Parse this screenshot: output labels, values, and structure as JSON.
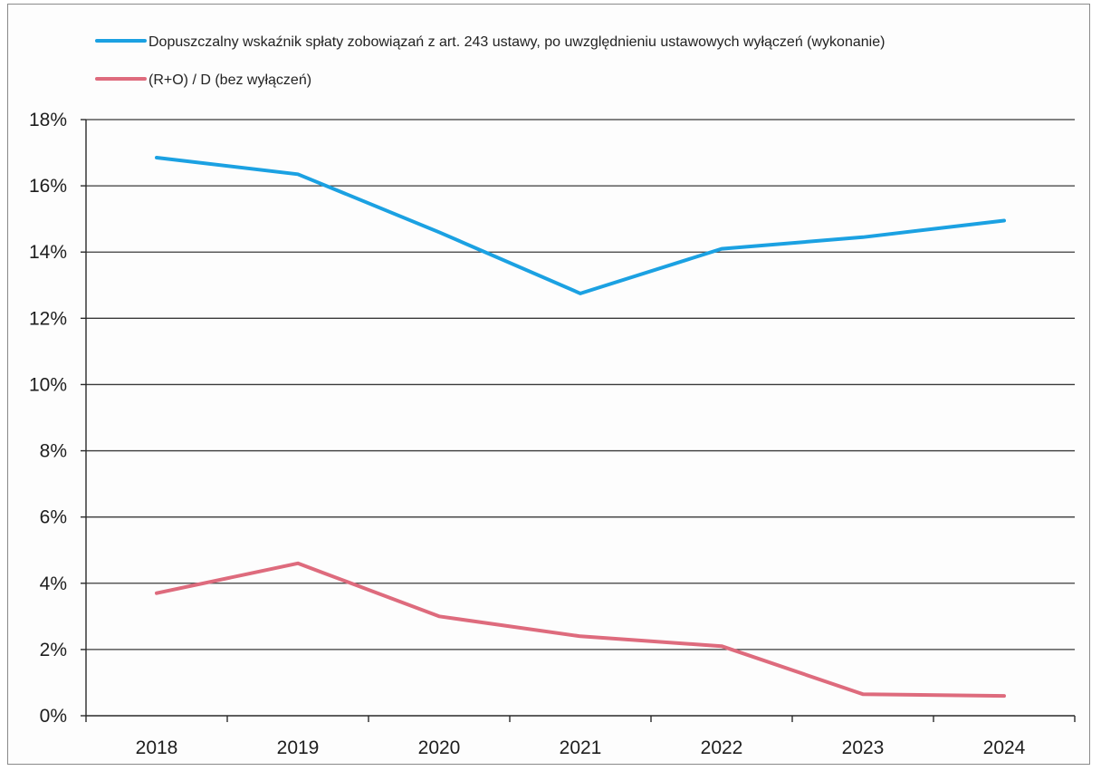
{
  "chart_data": {
    "type": "line",
    "title": "",
    "xlabel": "",
    "ylabel": "",
    "categories": [
      "2018",
      "2019",
      "2020",
      "2021",
      "2022",
      "2023",
      "2024"
    ],
    "ylim": [
      0,
      18
    ],
    "ytick_step": 2,
    "ytick_labels": [
      "0%",
      "2%",
      "4%",
      "6%",
      "8%",
      "10%",
      "12%",
      "14%",
      "16%",
      "18%"
    ],
    "grid": true,
    "legend_position": "top-left",
    "series": [
      {
        "name": "Dopuszczalny wskaźnik spłaty zobowiązań z art. 243 ustawy, po uwzględnieniu ustawowych wyłączeń (wykonanie)",
        "color": "#1ba1e2",
        "values": [
          16.85,
          16.35,
          14.6,
          12.75,
          14.1,
          14.45,
          14.95
        ]
      },
      {
        "name": "(R+O) / D (bez wyłączeń)",
        "color": "#de6b7d",
        "values": [
          3.7,
          4.6,
          3.0,
          2.4,
          2.1,
          0.65,
          0.6
        ]
      }
    ]
  }
}
